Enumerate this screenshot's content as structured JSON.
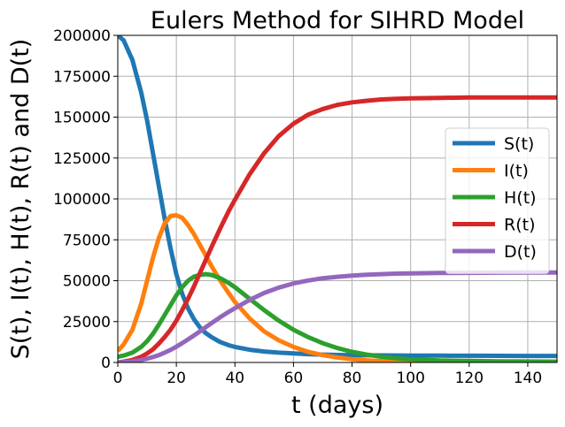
{
  "chart_data": {
    "type": "line",
    "title": "Eulers Method for SIHRD Model",
    "xlabel": "t (days)",
    "ylabel": "S(t), I(t), H(t), R(t) and D(t)",
    "xlim": [
      0,
      150
    ],
    "ylim": [
      0,
      200000
    ],
    "x_ticks": [
      0,
      20,
      40,
      60,
      80,
      100,
      120,
      140
    ],
    "y_ticks": [
      0,
      25000,
      50000,
      75000,
      100000,
      125000,
      150000,
      175000,
      200000
    ],
    "grid": true,
    "legend_position": "center-right",
    "x": [
      0,
      2,
      5,
      8,
      10,
      12,
      14,
      16,
      18,
      20,
      22,
      24,
      26,
      28,
      30,
      32,
      35,
      38,
      40,
      45,
      50,
      55,
      60,
      65,
      70,
      75,
      80,
      85,
      90,
      95,
      100,
      110,
      120,
      130,
      140,
      150
    ],
    "series": [
      {
        "name": "S(t)",
        "color": "#1f77b4",
        "values": [
          200000,
          197000,
          185000,
          165000,
          148000,
          128000,
          108000,
          88000,
          70000,
          54000,
          42000,
          33000,
          26500,
          21500,
          18000,
          15500,
          12500,
          10500,
          9500,
          7800,
          6700,
          6000,
          5500,
          5100,
          4800,
          4600,
          4500,
          4400,
          4300,
          4250,
          4200,
          4150,
          4100,
          4050,
          4000,
          4000
        ]
      },
      {
        "name": "I(t)",
        "color": "#ff7f0e",
        "values": [
          7000,
          11000,
          20000,
          36000,
          50000,
          64000,
          76000,
          85000,
          89500,
          90000,
          88500,
          84000,
          78500,
          72000,
          65500,
          59000,
          50000,
          42000,
          37000,
          27000,
          19000,
          13500,
          9500,
          6500,
          4500,
          3000,
          2000,
          1300,
          800,
          500,
          300,
          150,
          80,
          40,
          20,
          10
        ]
      },
      {
        "name": "H(t)",
        "color": "#2ca02c",
        "values": [
          3500,
          4200,
          6000,
          9500,
          13000,
          17500,
          23000,
          29000,
          35000,
          41000,
          46000,
          50000,
          52500,
          53500,
          54000,
          53500,
          51500,
          48500,
          46000,
          39000,
          32000,
          25500,
          20000,
          15500,
          11800,
          8800,
          6500,
          4800,
          3500,
          2600,
          1900,
          1200,
          900,
          700,
          600,
          500
        ]
      },
      {
        "name": "R(t)",
        "color": "#d62728",
        "values": [
          0,
          500,
          1500,
          3500,
          5500,
          8000,
          11500,
          15500,
          20000,
          25500,
          32000,
          39000,
          46500,
          54500,
          62500,
          70500,
          82000,
          93000,
          99500,
          115000,
          128000,
          138500,
          146000,
          151500,
          155000,
          157500,
          159000,
          160000,
          160800,
          161200,
          161500,
          161800,
          162000,
          162000,
          162000,
          162000
        ]
      },
      {
        "name": "D(t)",
        "color": "#9467bd",
        "values": [
          0,
          200,
          700,
          1500,
          2300,
          3300,
          4500,
          6000,
          7700,
          9600,
          11800,
          14100,
          16500,
          19000,
          21500,
          24000,
          27700,
          31100,
          33200,
          38200,
          42500,
          45800,
          48300,
          50100,
          51500,
          52400,
          53100,
          53600,
          54000,
          54300,
          54500,
          54700,
          54800,
          54900,
          55000,
          55000
        ]
      }
    ]
  }
}
